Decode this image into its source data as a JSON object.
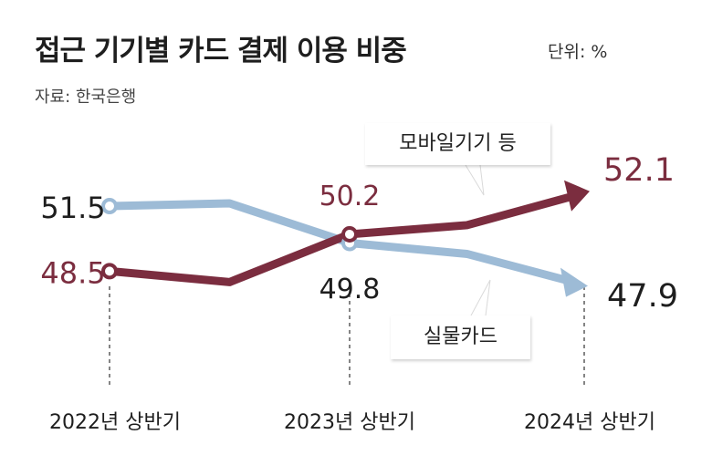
{
  "header": {
    "title": "접근 기기별 카드 결제 이용 비중",
    "unit": "단위: %",
    "source": "자료: 한국은행"
  },
  "callouts": {
    "mobile": "모바일기기 등",
    "physical": "실물카드"
  },
  "colors": {
    "mobile": "#7b2d3f",
    "physical": "#9dbbd6",
    "text": "#222222",
    "background": "#ffffff"
  },
  "chart_data": {
    "type": "line",
    "categories": [
      "2022년 상반기",
      "2023년 상반기",
      "2024년 상반기"
    ],
    "series": [
      {
        "name": "모바일기기 등",
        "values": [
          48.5,
          50.2,
          52.1
        ],
        "labels": [
          "48.5",
          "50.2",
          "52.1"
        ]
      },
      {
        "name": "실물카드",
        "values": [
          51.5,
          49.8,
          47.9
        ],
        "labels": [
          "51.5",
          "49.8",
          "47.9"
        ]
      }
    ]
  }
}
